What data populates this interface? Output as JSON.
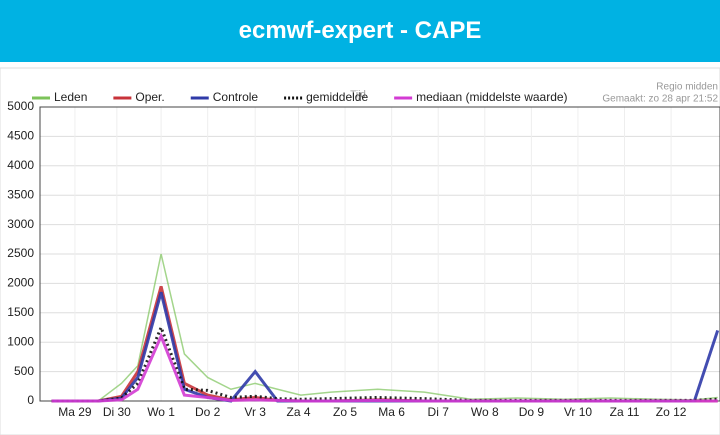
{
  "header": {
    "title": "ecmwf-expert - CAPE"
  },
  "chart_data": {
    "type": "line",
    "subtitle": "Regio midden",
    "note": "Gemaakt: zo 28 apr 21:52",
    "x_label": "Tijd",
    "x": [
      0,
      0.5,
      1,
      1.5,
      1.85,
      2.35,
      2.85,
      3.35,
      3.85,
      4.37,
      4.85,
      5.35,
      6,
      7,
      8,
      9,
      10,
      11,
      12,
      13,
      13.8,
      14.3
    ],
    "xlim": [
      -0.25,
      14.35
    ],
    "xticks": [
      {
        "value": 0.5,
        "label": "Ma 29"
      },
      {
        "value": 1.4,
        "label": "Di 30"
      },
      {
        "value": 2.35,
        "label": "Wo 1"
      },
      {
        "value": 3.35,
        "label": "Do 2"
      },
      {
        "value": 4.37,
        "label": "Vr 3"
      },
      {
        "value": 5.3,
        "label": "Za 4"
      },
      {
        "value": 6.3,
        "label": "Zo 5"
      },
      {
        "value": 7.3,
        "label": "Ma 6"
      },
      {
        "value": 8.3,
        "label": "Di 7"
      },
      {
        "value": 9.3,
        "label": "Wo 8"
      },
      {
        "value": 10.3,
        "label": "Do 9"
      },
      {
        "value": 11.3,
        "label": "Vr 10"
      },
      {
        "value": 12.3,
        "label": "Za 11"
      },
      {
        "value": 13.3,
        "label": "Zo 12"
      }
    ],
    "ylim": [
      0,
      5000
    ],
    "yticks": [
      0,
      500,
      1000,
      1500,
      2000,
      2500,
      3000,
      3500,
      4000,
      4500,
      5000
    ],
    "grid": true,
    "series": [
      {
        "name": "Leden",
        "color": "#7cc35a",
        "values": [
          0,
          0,
          0,
          300,
          600,
          2500,
          800,
          400,
          200,
          300,
          200,
          100,
          150,
          200,
          150,
          30,
          50,
          30,
          50,
          30,
          20,
          60
        ]
      },
      {
        "name": "Oper.",
        "color": "#c8333a",
        "values": [
          0,
          0,
          0,
          80,
          500,
          1950,
          300,
          100,
          20,
          60,
          10,
          0,
          0,
          20,
          0,
          0,
          0,
          0,
          0,
          0,
          0,
          0
        ]
      },
      {
        "name": "Controle",
        "color": "#2f3aa8",
        "values": [
          0,
          0,
          0,
          50,
          400,
          1850,
          200,
          60,
          0,
          500,
          0,
          0,
          0,
          0,
          0,
          0,
          0,
          0,
          0,
          0,
          0,
          1200
        ]
      },
      {
        "name": "gemiddelde",
        "color": "#111111",
        "dash": true,
        "values": [
          0,
          0,
          0,
          50,
          300,
          1250,
          200,
          180,
          60,
          80,
          40,
          30,
          40,
          60,
          40,
          10,
          10,
          10,
          10,
          10,
          10,
          30
        ]
      },
      {
        "name": "mediaan (middelste waarde)",
        "color": "#d33bd3",
        "values": [
          0,
          0,
          0,
          20,
          200,
          1100,
          100,
          60,
          10,
          20,
          10,
          0,
          0,
          10,
          0,
          0,
          0,
          0,
          0,
          0,
          0,
          0
        ]
      }
    ]
  }
}
